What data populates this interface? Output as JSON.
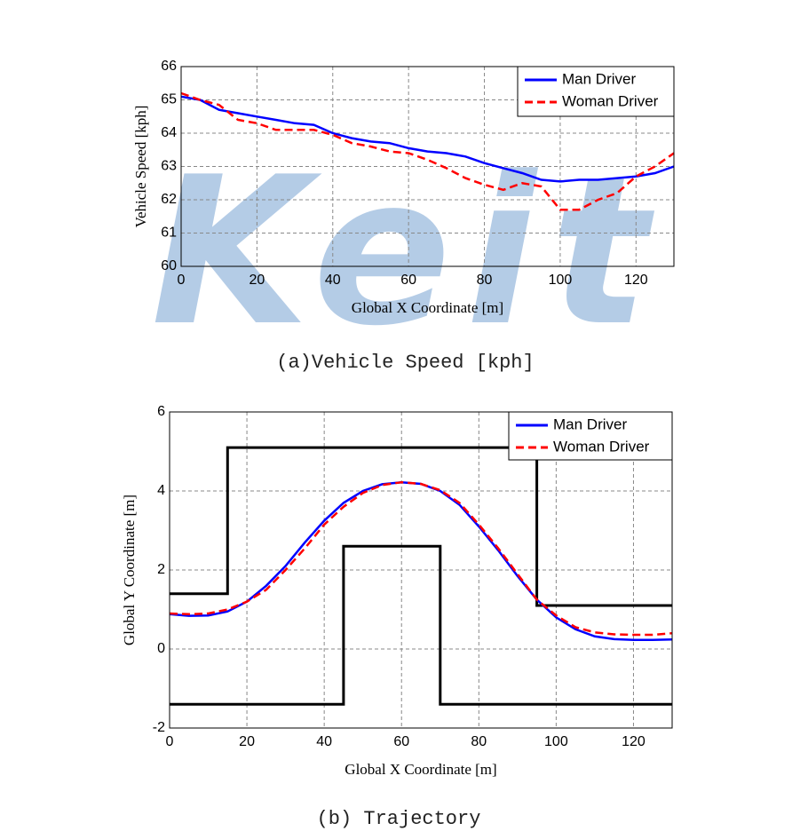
{
  "chart_data": [
    {
      "type": "line",
      "watermark": "Keit",
      "caption": "(a)Vehicle Speed [kph]",
      "xlabel": "Global X Coordinate [m]",
      "ylabel": "Vehicle Speed [kph]",
      "x": [
        0,
        5,
        10,
        15,
        20,
        25,
        30,
        35,
        40,
        45,
        50,
        55,
        60,
        65,
        70,
        75,
        80,
        85,
        90,
        95,
        100,
        105,
        110,
        115,
        120,
        125,
        130
      ],
      "series": [
        {
          "name": "Man Driver",
          "color": "#0000ff",
          "dash": "solid",
          "values": [
            65.1,
            65.0,
            64.7,
            64.6,
            64.5,
            64.4,
            64.3,
            64.25,
            64.0,
            63.85,
            63.75,
            63.7,
            63.55,
            63.45,
            63.4,
            63.3,
            63.1,
            62.95,
            62.8,
            62.6,
            62.55,
            62.6,
            62.6,
            62.65,
            62.7,
            62.8,
            63.0
          ]
        },
        {
          "name": "Woman Driver",
          "color": "#ff0000",
          "dash": "dashed",
          "values": [
            65.2,
            65.0,
            64.85,
            64.4,
            64.3,
            64.1,
            64.1,
            64.1,
            63.95,
            63.7,
            63.6,
            63.45,
            63.4,
            63.2,
            62.95,
            62.65,
            62.45,
            62.3,
            62.5,
            62.4,
            61.7,
            61.7,
            62.0,
            62.2,
            62.7,
            63.0,
            63.4
          ]
        }
      ],
      "xlim": [
        0,
        130
      ],
      "xticks": [
        0,
        20,
        40,
        60,
        80,
        100,
        120
      ],
      "ylim": [
        60,
        66
      ],
      "yticks": [
        60,
        61,
        62,
        63,
        64,
        65,
        66
      ],
      "grid": true,
      "legend": "upper right"
    },
    {
      "type": "line",
      "caption": "(b) Trajectory",
      "xlabel": "Global X Coordinate [m]",
      "ylabel": "Global Y Coordinate [m]",
      "x": [
        0,
        5,
        10,
        15,
        20,
        25,
        30,
        35,
        40,
        45,
        50,
        55,
        60,
        65,
        70,
        75,
        80,
        85,
        90,
        95,
        100,
        105,
        110,
        115,
        120,
        125,
        130
      ],
      "series": [
        {
          "name": "Man Driver",
          "color": "#0000ff",
          "dash": "solid",
          "values": [
            0.88,
            0.84,
            0.85,
            0.95,
            1.2,
            1.6,
            2.1,
            2.7,
            3.25,
            3.7,
            4.0,
            4.17,
            4.22,
            4.18,
            4.0,
            3.65,
            3.1,
            2.5,
            1.85,
            1.25,
            0.8,
            0.5,
            0.32,
            0.25,
            0.23,
            0.23,
            0.24
          ]
        },
        {
          "name": "Woman Driver",
          "color": "#ff0000",
          "dash": "dashed",
          "values": [
            0.9,
            0.88,
            0.9,
            1.0,
            1.2,
            1.5,
            2.0,
            2.55,
            3.15,
            3.6,
            3.95,
            4.15,
            4.22,
            4.18,
            4.02,
            3.7,
            3.15,
            2.55,
            1.9,
            1.25,
            0.85,
            0.55,
            0.42,
            0.37,
            0.36,
            0.36,
            0.4
          ]
        }
      ],
      "boundaries": [
        {
          "color": "#000000",
          "x": [
            0,
            15,
            15,
            95,
            95,
            130
          ],
          "y": [
            1.4,
            1.4,
            5.1,
            5.1,
            1.1,
            1.1
          ]
        },
        {
          "color": "#000000",
          "x": [
            0,
            45,
            45,
            70,
            70,
            130
          ],
          "y": [
            -1.4,
            -1.4,
            2.6,
            2.6,
            -1.4,
            -1.4
          ]
        }
      ],
      "xlim": [
        0,
        130
      ],
      "xticks": [
        0,
        20,
        40,
        60,
        80,
        100,
        120
      ],
      "ylim": [
        -2,
        6
      ],
      "yticks": [
        -2,
        0,
        2,
        4,
        6
      ],
      "grid": true,
      "legend": "upper right"
    }
  ]
}
